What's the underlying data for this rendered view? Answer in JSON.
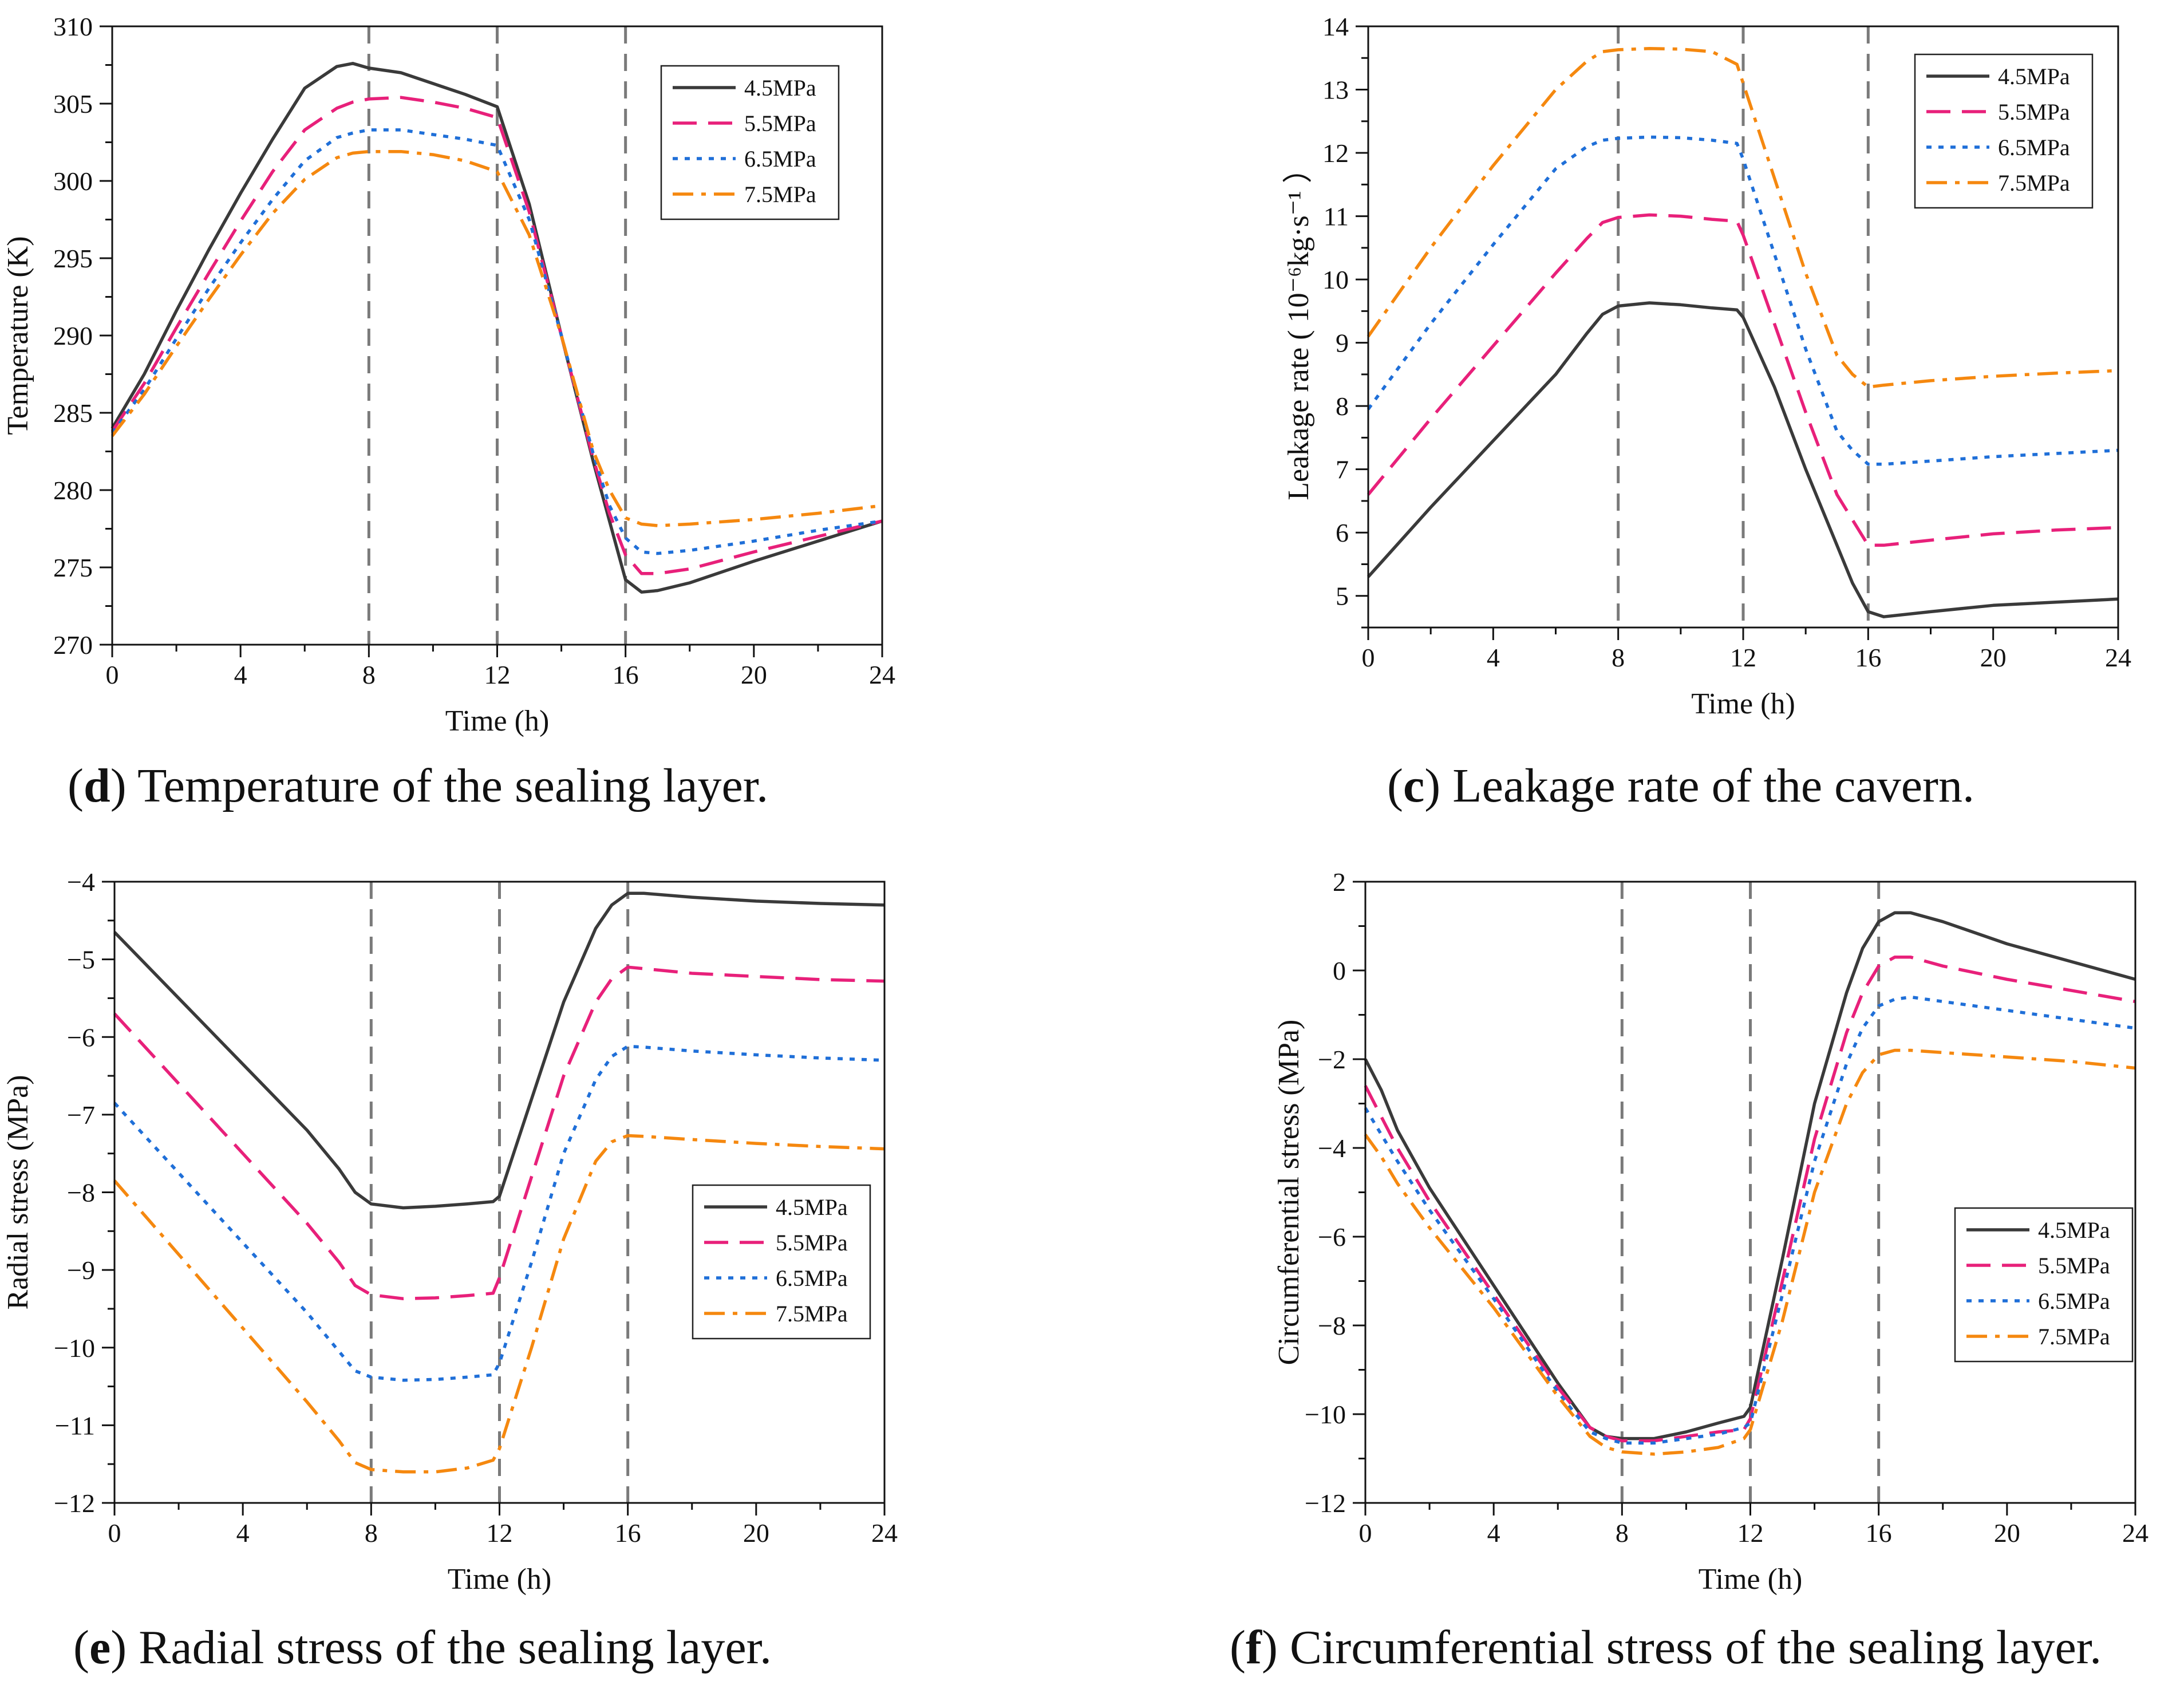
{
  "series_styles": [
    {
      "name": "4.5MPa",
      "color": "#3a3a3a",
      "dash": "solid"
    },
    {
      "name": "5.5MPa",
      "color": "#e8207a",
      "dash": "dash"
    },
    {
      "name": "6.5MPa",
      "color": "#1f6fd8",
      "dash": "dot"
    },
    {
      "name": "7.5MPa",
      "color": "#f5880f",
      "dash": "dashdot"
    }
  ],
  "chart_data": [
    {
      "id": "temperature",
      "type": "line",
      "caption_letter": "d",
      "caption_text": ") Temperature of the sealing layer.",
      "xlabel": "Time (h)",
      "ylabel": "Temperature (K)",
      "ylabel_unit": "",
      "xlim": [
        0,
        24
      ],
      "ylim": [
        270,
        310
      ],
      "xticks": [
        0,
        4,
        8,
        12,
        16,
        20,
        24
      ],
      "yticks": [
        270,
        275,
        280,
        285,
        290,
        295,
        300,
        305,
        310
      ],
      "ytick_labels": [
        "270",
        "275",
        "280",
        "285",
        "290",
        "295",
        "300",
        "305",
        "310"
      ],
      "ytick_minus": false,
      "vlines": [
        8,
        12,
        16
      ],
      "legend_position": "top-right",
      "series": [
        {
          "name": "4.5MPa",
          "x": [
            0,
            1,
            2,
            3,
            4,
            5,
            6,
            7,
            7.5,
            8,
            9,
            10,
            11,
            12,
            13,
            14,
            15,
            15.5,
            16,
            16.5,
            17,
            18,
            20,
            22,
            24
          ],
          "y": [
            284.0,
            287.5,
            291.6,
            295.5,
            299.2,
            302.7,
            306.0,
            307.4,
            307.6,
            307.3,
            307.0,
            306.3,
            305.6,
            304.8,
            298.5,
            290.0,
            281.8,
            278.0,
            274.2,
            273.4,
            273.5,
            274.0,
            275.4,
            276.7,
            278.0
          ]
        },
        {
          "name": "5.5MPa",
          "x": [
            0,
            1,
            2,
            3,
            4,
            5,
            6,
            7,
            7.5,
            8,
            9,
            10,
            11,
            12,
            13,
            14,
            15,
            15.5,
            16,
            16.5,
            17,
            18,
            20,
            22,
            24
          ],
          "y": [
            283.8,
            286.9,
            290.5,
            294.0,
            297.4,
            300.6,
            303.3,
            304.7,
            305.1,
            305.3,
            305.4,
            305.1,
            304.7,
            304.1,
            298.0,
            290.0,
            282.0,
            278.5,
            275.8,
            274.6,
            274.6,
            274.9,
            276.0,
            277.0,
            278.0
          ]
        },
        {
          "name": "6.5MPa",
          "x": [
            0,
            1,
            2,
            3,
            4,
            5,
            6,
            7,
            7.5,
            8,
            9,
            10,
            11,
            12,
            13,
            14,
            15,
            15.5,
            16,
            16.5,
            17,
            18,
            20,
            22,
            24
          ],
          "y": [
            283.7,
            286.5,
            289.8,
            293.0,
            296.0,
            298.8,
            301.3,
            302.8,
            303.1,
            303.3,
            303.3,
            303.0,
            302.7,
            302.3,
            297.5,
            290.0,
            282.3,
            279.0,
            276.9,
            276.0,
            275.9,
            276.1,
            276.7,
            277.4,
            278.0
          ]
        },
        {
          "name": "7.5MPa",
          "x": [
            0,
            1,
            2,
            3,
            4,
            5,
            6,
            7,
            7.5,
            8,
            9,
            10,
            11,
            12,
            13,
            14,
            15,
            15.5,
            16,
            16.5,
            17,
            18,
            20,
            22,
            24
          ],
          "y": [
            283.5,
            286.2,
            289.3,
            292.3,
            295.2,
            297.9,
            300.1,
            301.5,
            301.8,
            301.9,
            301.9,
            301.7,
            301.3,
            300.6,
            296.5,
            290.0,
            282.5,
            280.0,
            278.2,
            277.8,
            277.7,
            277.8,
            278.1,
            278.5,
            279.0
          ]
        }
      ]
    },
    {
      "id": "leakage",
      "type": "line",
      "caption_letter": "c",
      "caption_text": ") Leakage rate of the cavern.",
      "xlabel": "Time (h)",
      "ylabel": "Leakage rate (",
      "ylabel_unit": "10⁻⁶kg·s⁻¹ ）",
      "xlim": [
        0,
        24
      ],
      "ylim": [
        4.5,
        14
      ],
      "xticks": [
        0,
        4,
        8,
        12,
        16,
        20,
        24
      ],
      "yticks": [
        5,
        6,
        7,
        8,
        9,
        10,
        11,
        12,
        13,
        14
      ],
      "ytick_labels": [
        "5",
        "6",
        "7",
        "8",
        "9",
        "10",
        "11",
        "12",
        "13",
        "14"
      ],
      "ytick_minus": false,
      "vlines": [
        8,
        12,
        16
      ],
      "legend_position": "top-right",
      "series": [
        {
          "name": "4.5MPa",
          "x": [
            0,
            2,
            4,
            6,
            7,
            7.5,
            8,
            9,
            10,
            11,
            11.8,
            12,
            13,
            14,
            15,
            15.5,
            16,
            16.5,
            18,
            20,
            22,
            24
          ],
          "y": [
            5.3,
            6.4,
            7.45,
            8.5,
            9.15,
            9.45,
            9.58,
            9.63,
            9.6,
            9.55,
            9.52,
            9.4,
            8.3,
            7.0,
            5.8,
            5.2,
            4.75,
            4.67,
            4.75,
            4.85,
            4.9,
            4.95
          ]
        },
        {
          "name": "5.5MPa",
          "x": [
            0,
            2,
            4,
            6,
            7,
            7.5,
            8,
            9,
            10,
            11,
            11.8,
            12,
            13,
            14,
            15,
            15.5,
            16,
            16.5,
            18,
            20,
            22,
            24
          ],
          "y": [
            6.6,
            7.8,
            8.95,
            10.1,
            10.65,
            10.9,
            10.98,
            11.02,
            11.0,
            10.95,
            10.92,
            10.7,
            9.3,
            7.9,
            6.6,
            6.2,
            5.8,
            5.8,
            5.88,
            5.98,
            6.04,
            6.08
          ]
        },
        {
          "name": "6.5MPa",
          "x": [
            0,
            2,
            4,
            6,
            7,
            7.5,
            8,
            9,
            10,
            11,
            11.8,
            12,
            13,
            14,
            15,
            15.5,
            16,
            16.5,
            18,
            20,
            22,
            24
          ],
          "y": [
            7.95,
            9.3,
            10.55,
            11.75,
            12.1,
            12.2,
            12.23,
            12.25,
            12.24,
            12.2,
            12.15,
            11.9,
            10.4,
            8.9,
            7.6,
            7.3,
            7.08,
            7.08,
            7.13,
            7.2,
            7.25,
            7.3
          ]
        },
        {
          "name": "7.5MPa",
          "x": [
            0,
            2,
            4,
            6,
            7,
            7.5,
            8,
            9,
            10,
            11,
            11.8,
            12,
            13,
            14,
            15,
            15.5,
            16,
            16.5,
            18,
            20,
            22,
            24
          ],
          "y": [
            9.1,
            10.5,
            11.8,
            13.0,
            13.45,
            13.6,
            13.63,
            13.65,
            13.64,
            13.6,
            13.4,
            13.1,
            11.6,
            10.1,
            8.8,
            8.5,
            8.3,
            8.33,
            8.4,
            8.47,
            8.52,
            8.56
          ]
        }
      ]
    },
    {
      "id": "radial",
      "type": "line",
      "caption_letter": "e",
      "caption_text": ") Radial stress of the sealing layer.",
      "xlabel": "Time (h)",
      "ylabel": "Radial stress (MPa)",
      "ylabel_unit": "",
      "xlim": [
        0,
        24
      ],
      "ylim": [
        -12,
        -4
      ],
      "xticks": [
        0,
        4,
        8,
        12,
        16,
        20,
        24
      ],
      "yticks": [
        -12,
        -11,
        -10,
        -9,
        -8,
        -7,
        -6,
        -5,
        -4
      ],
      "ytick_labels": [
        "12",
        "11",
        "10",
        "9",
        "8",
        "7",
        "6",
        "5",
        "4"
      ],
      "ytick_minus": true,
      "vlines": [
        8,
        12,
        16
      ],
      "legend_position": "middle-right",
      "series": [
        {
          "name": "4.5MPa",
          "x": [
            0,
            2,
            4,
            6,
            7,
            7.5,
            8,
            9,
            10,
            11,
            11.8,
            12,
            13,
            14,
            15,
            15.5,
            16,
            16.5,
            18,
            20,
            22,
            24
          ],
          "y": [
            -4.65,
            -5.5,
            -6.35,
            -7.2,
            -7.7,
            -8.0,
            -8.15,
            -8.2,
            -8.18,
            -8.15,
            -8.12,
            -8.05,
            -6.8,
            -5.55,
            -4.6,
            -4.3,
            -4.15,
            -4.15,
            -4.2,
            -4.25,
            -4.28,
            -4.3
          ]
        },
        {
          "name": "5.5MPa",
          "x": [
            0,
            2,
            4,
            6,
            7,
            7.5,
            8,
            9,
            10,
            11,
            11.8,
            12,
            13,
            14,
            15,
            15.5,
            16,
            16.5,
            18,
            20,
            22,
            24
          ],
          "y": [
            -5.7,
            -6.6,
            -7.5,
            -8.4,
            -8.9,
            -9.2,
            -9.32,
            -9.37,
            -9.36,
            -9.33,
            -9.3,
            -9.1,
            -7.8,
            -6.5,
            -5.55,
            -5.25,
            -5.1,
            -5.12,
            -5.18,
            -5.22,
            -5.26,
            -5.28
          ]
        },
        {
          "name": "6.5MPa",
          "x": [
            0,
            2,
            4,
            6,
            7,
            7.5,
            8,
            9,
            10,
            11,
            11.8,
            12,
            13,
            14,
            15,
            15.5,
            16,
            16.5,
            18,
            20,
            22,
            24
          ],
          "y": [
            -6.85,
            -7.75,
            -8.65,
            -9.55,
            -10.05,
            -10.3,
            -10.38,
            -10.42,
            -10.41,
            -10.38,
            -10.35,
            -10.2,
            -8.9,
            -7.5,
            -6.55,
            -6.25,
            -6.12,
            -6.13,
            -6.18,
            -6.23,
            -6.27,
            -6.3
          ]
        },
        {
          "name": "7.5MPa",
          "x": [
            0,
            2,
            4,
            6,
            7,
            7.5,
            8,
            9,
            10,
            11,
            11.8,
            12,
            13,
            14,
            15,
            15.5,
            16,
            16.5,
            18,
            20,
            22,
            24
          ],
          "y": [
            -7.85,
            -8.8,
            -9.75,
            -10.7,
            -11.2,
            -11.48,
            -11.57,
            -11.6,
            -11.6,
            -11.55,
            -11.45,
            -11.3,
            -10.0,
            -8.6,
            -7.6,
            -7.35,
            -7.27,
            -7.28,
            -7.32,
            -7.37,
            -7.41,
            -7.44
          ]
        }
      ]
    },
    {
      "id": "circumferential",
      "type": "line",
      "caption_letter": "f",
      "caption_text": ") Circumferential stress of the sealing layer.",
      "xlabel": "Time (h)",
      "ylabel": "Circumferential stress (MPa)",
      "ylabel_unit": "",
      "xlim": [
        0,
        24
      ],
      "ylim": [
        -12,
        2
      ],
      "xticks": [
        0,
        4,
        8,
        12,
        16,
        20,
        24
      ],
      "yticks": [
        -12,
        -10,
        -8,
        -6,
        -4,
        -2,
        0,
        2
      ],
      "ytick_labels": [
        "12",
        "10",
        "8",
        "6",
        "4",
        "2",
        "0",
        "2"
      ],
      "ytick_minus": true,
      "vlines": [
        8,
        12,
        16
      ],
      "legend_position": "middle-right",
      "series": [
        {
          "name": "4.5MPa",
          "x": [
            0,
            0.5,
            1,
            2,
            4,
            6,
            7,
            7.5,
            8,
            9,
            10,
            11,
            11.8,
            12,
            13,
            14,
            15,
            15.5,
            16,
            16.5,
            17,
            18,
            20,
            22,
            24
          ],
          "y": [
            -2.0,
            -2.7,
            -3.6,
            -4.9,
            -7.1,
            -9.3,
            -10.3,
            -10.5,
            -10.55,
            -10.55,
            -10.4,
            -10.2,
            -10.05,
            -9.85,
            -6.5,
            -3.0,
            -0.5,
            0.5,
            1.1,
            1.3,
            1.3,
            1.1,
            0.6,
            0.2,
            -0.2
          ]
        },
        {
          "name": "5.5MPa",
          "x": [
            0,
            0.5,
            1,
            2,
            4,
            6,
            7,
            7.5,
            8,
            9,
            10,
            11,
            11.8,
            12,
            13,
            14,
            15,
            15.5,
            16,
            16.5,
            17,
            18,
            20,
            22,
            24
          ],
          "y": [
            -2.6,
            -3.3,
            -4.0,
            -5.2,
            -7.3,
            -9.4,
            -10.3,
            -10.5,
            -10.6,
            -10.6,
            -10.5,
            -10.4,
            -10.35,
            -10.1,
            -7.0,
            -3.8,
            -1.4,
            -0.5,
            0.1,
            0.3,
            0.3,
            0.1,
            -0.2,
            -0.45,
            -0.7
          ]
        },
        {
          "name": "6.5MPa",
          "x": [
            0,
            0.5,
            1,
            2,
            4,
            6,
            7,
            7.5,
            8,
            9,
            10,
            11,
            11.8,
            12,
            13,
            14,
            15,
            15.5,
            16,
            16.5,
            17,
            18,
            20,
            22,
            24
          ],
          "y": [
            -3.1,
            -3.7,
            -4.3,
            -5.4,
            -7.4,
            -9.5,
            -10.4,
            -10.55,
            -10.65,
            -10.65,
            -10.55,
            -10.45,
            -10.3,
            -10.2,
            -7.3,
            -4.3,
            -2.1,
            -1.3,
            -0.8,
            -0.65,
            -0.6,
            -0.7,
            -0.9,
            -1.1,
            -1.3
          ]
        },
        {
          "name": "7.5MPa",
          "x": [
            0,
            0.5,
            1,
            2,
            4,
            6,
            7,
            7.5,
            8,
            9,
            10,
            11,
            11.8,
            12,
            13,
            14,
            15,
            15.5,
            16,
            16.5,
            17,
            18,
            20,
            22,
            24
          ],
          "y": [
            -3.7,
            -4.2,
            -4.8,
            -5.8,
            -7.6,
            -9.6,
            -10.5,
            -10.75,
            -10.85,
            -10.9,
            -10.85,
            -10.75,
            -10.55,
            -10.35,
            -7.9,
            -5.0,
            -3.0,
            -2.3,
            -1.9,
            -1.8,
            -1.8,
            -1.85,
            -1.95,
            -2.05,
            -2.2
          ]
        }
      ]
    }
  ]
}
